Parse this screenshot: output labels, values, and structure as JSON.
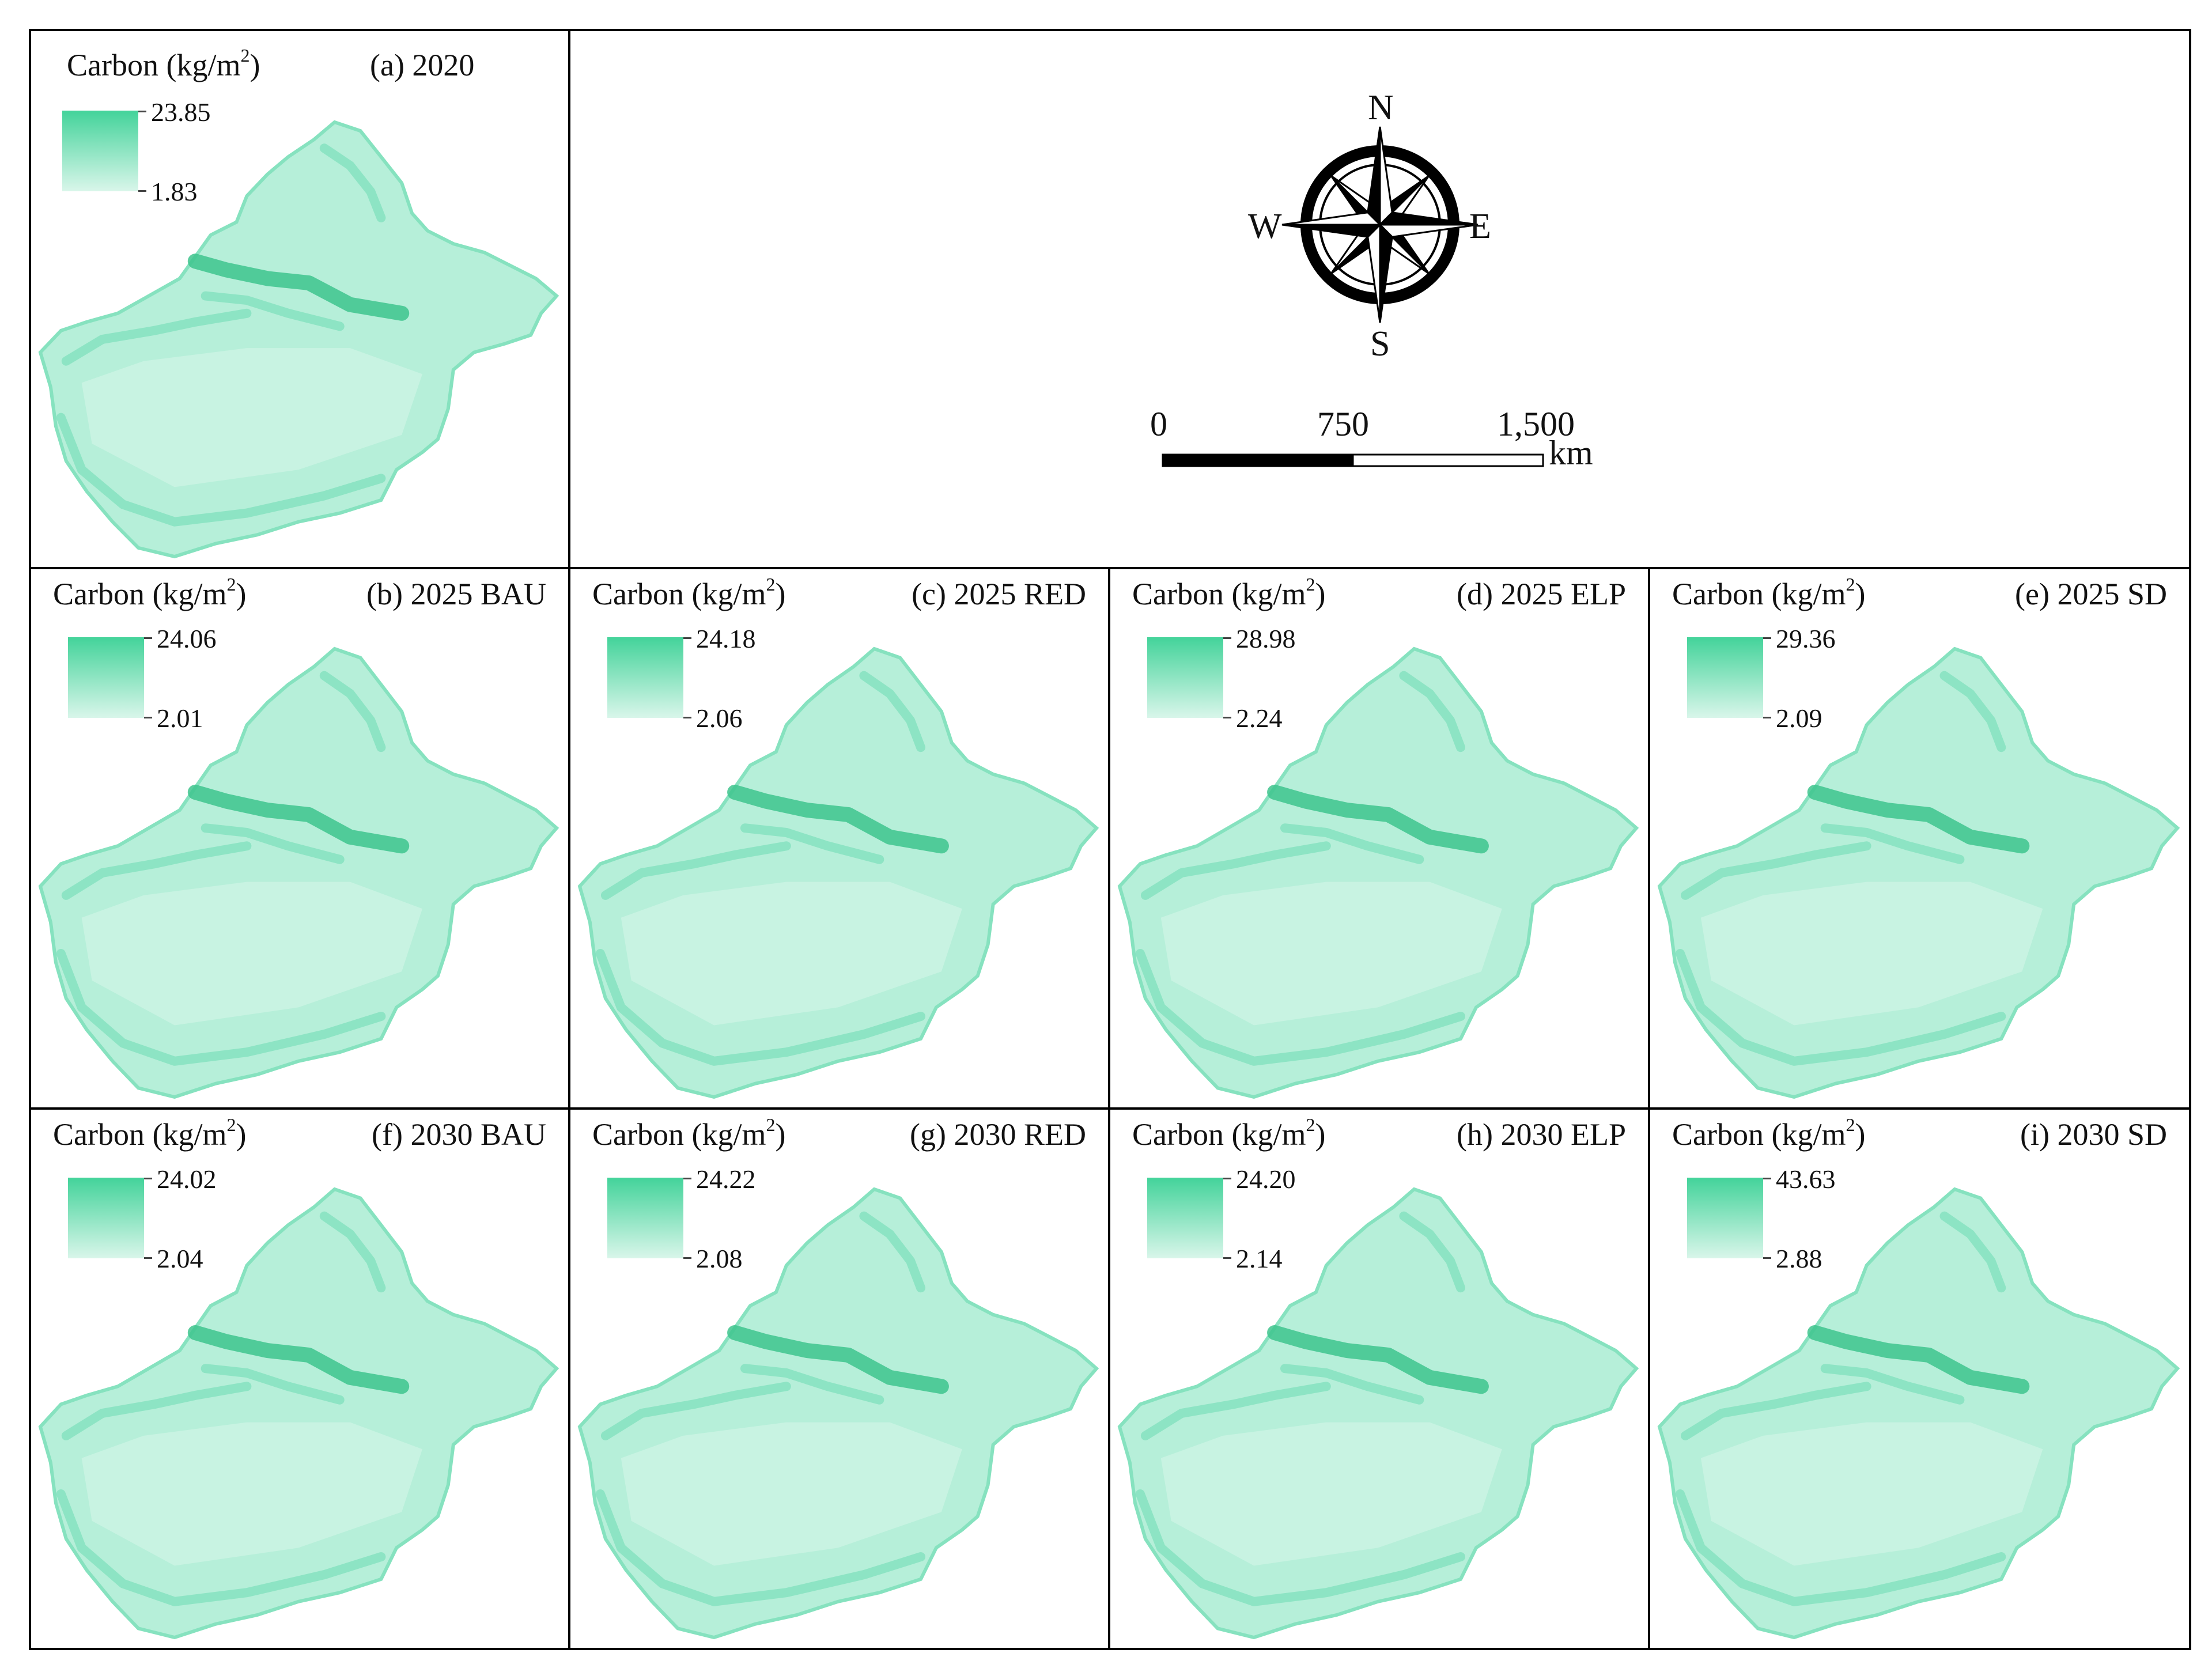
{
  "figure": {
    "colors": {
      "ramp_high": "#43d39a",
      "ramp_low": "#d9f6ea",
      "land_light": "#b6efd9",
      "land_mid": "#86e2bf",
      "land_dark": "#3ec48d",
      "frame": "#000000"
    },
    "panels": [
      {
        "id": "a",
        "label": "(a) 2020",
        "legend_title": "Carbon (kg/m",
        "legend_unit_exp": "2",
        "legend_close": ")",
        "legend_max": "23.85",
        "legend_min": "1.83",
        "max_value": 23.85,
        "min_value": 1.83,
        "icon": "carbon-density-map"
      },
      {
        "id": "b",
        "label": "(b) 2025 BAU",
        "legend_title": "Carbon (kg/m",
        "legend_unit_exp": "2",
        "legend_close": ")",
        "legend_max": "24.06",
        "legend_min": "2.01",
        "max_value": 24.06,
        "min_value": 2.01,
        "icon": "carbon-density-map"
      },
      {
        "id": "c",
        "label": "(c) 2025 RED",
        "legend_title": "Carbon (kg/m",
        "legend_unit_exp": "2",
        "legend_close": ")",
        "legend_max": "24.18",
        "legend_min": "2.06",
        "max_value": 24.18,
        "min_value": 2.06,
        "icon": "carbon-density-map"
      },
      {
        "id": "d",
        "label": "(d) 2025 ELP",
        "legend_title": "Carbon (kg/m",
        "legend_unit_exp": "2",
        "legend_close": ")",
        "legend_max": "28.98",
        "legend_min": "2.24",
        "max_value": 28.98,
        "min_value": 2.24,
        "icon": "carbon-density-map"
      },
      {
        "id": "e",
        "label": "(e) 2025 SD",
        "legend_title": "Carbon (kg/m",
        "legend_unit_exp": "2",
        "legend_close": ")",
        "legend_max": "29.36",
        "legend_min": "2.09",
        "max_value": 29.36,
        "min_value": 2.09,
        "icon": "carbon-density-map"
      },
      {
        "id": "f",
        "label": "(f) 2030 BAU",
        "legend_title": "Carbon (kg/m",
        "legend_unit_exp": "2",
        "legend_close": ")",
        "legend_max": "24.02",
        "legend_min": "2.04",
        "max_value": 24.02,
        "min_value": 2.04,
        "icon": "carbon-density-map"
      },
      {
        "id": "g",
        "label": "(g) 2030 RED",
        "legend_title": "Carbon (kg/m",
        "legend_unit_exp": "2",
        "legend_close": ")",
        "legend_max": "24.22",
        "legend_min": "2.08",
        "max_value": 24.22,
        "min_value": 2.08,
        "icon": "carbon-density-map"
      },
      {
        "id": "h",
        "label": "(h) 2030 ELP",
        "legend_title": "Carbon (kg/m",
        "legend_unit_exp": "2",
        "legend_close": ")",
        "legend_max": "24.20",
        "legend_min": "2.14",
        "max_value": 24.2,
        "min_value": 2.14,
        "icon": "carbon-density-map"
      },
      {
        "id": "i",
        "label": "(i) 2030 SD",
        "legend_title": "Carbon (kg/m",
        "legend_unit_exp": "2",
        "legend_close": ")",
        "legend_max": "43.63",
        "legend_min": "2.88",
        "max_value": 43.63,
        "min_value": 2.88,
        "icon": "carbon-density-map"
      }
    ],
    "compass": {
      "icon": "compass-rose-icon",
      "north": "N",
      "south": "S",
      "east": "E",
      "west": "W"
    },
    "scale_bar": {
      "icon": "scale-bar",
      "labels": [
        "0",
        "750",
        "1,500"
      ],
      "unit": "km"
    }
  }
}
